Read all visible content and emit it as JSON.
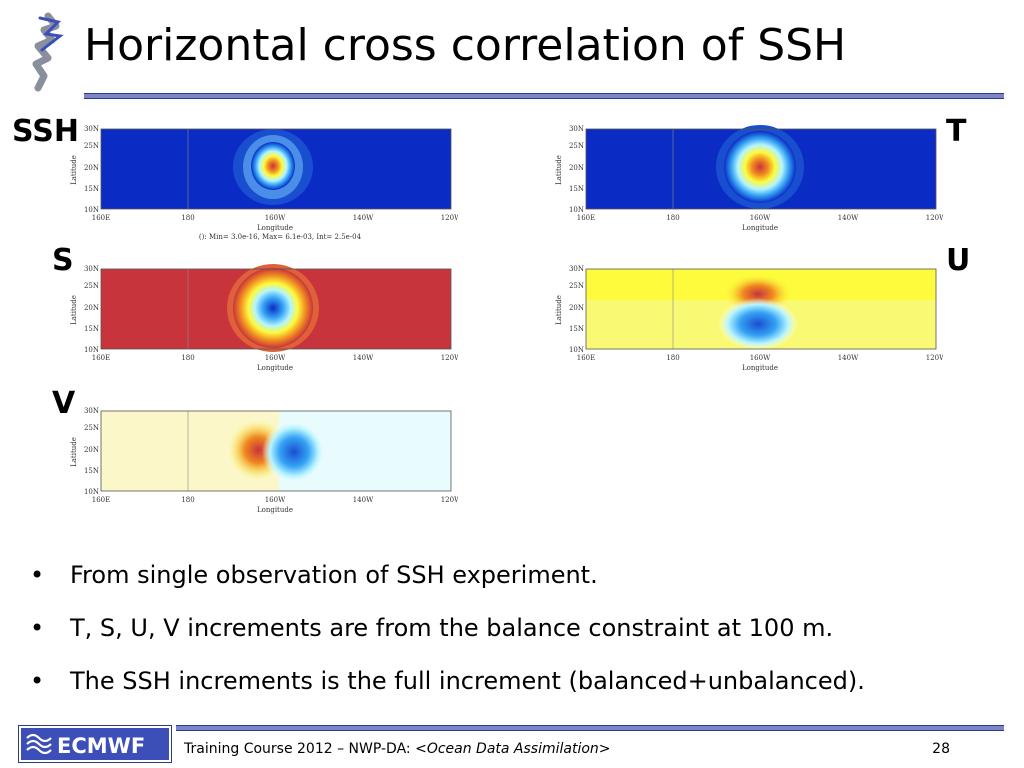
{
  "slide": {
    "title": "Horizontal cross correlation of SSH",
    "page_number": "28"
  },
  "panels": [
    {
      "id": "ssh",
      "label": "SSH",
      "caption": "(): Min= 3.0e-16, Max= 6.1e-03, Int= 2.5e-04"
    },
    {
      "id": "t",
      "label": "T",
      "caption": ""
    },
    {
      "id": "s",
      "label": "S",
      "caption": ""
    },
    {
      "id": "u",
      "label": "U",
      "caption": ""
    },
    {
      "id": "v",
      "label": "V",
      "caption": ""
    }
  ],
  "axes": {
    "xlabel": "Longitude",
    "ylabel": "Latitude",
    "xticks": [
      "160E",
      "180",
      "160W",
      "140W",
      "120W"
    ],
    "yticks": [
      "30N",
      "25N",
      "20N",
      "15N",
      "10N"
    ]
  },
  "colors": {
    "accent_bar": "#7a86c8",
    "accent_border": "#2e3b8c",
    "deep_blue": "#0a2cc4",
    "deep_red": "#c8343c",
    "yellow": "#fdfb3c",
    "pale_yellow": "#fbf7c9",
    "pale_cyan": "#e8fbfd"
  },
  "bullets": [
    "From single observation of SSH experiment.",
    "T, S, U, V increments are from the balance constraint at 100 m.",
    "The SSH increments is the full increment (balanced+unbalanced)."
  ],
  "footer": {
    "course": "Training Course 2012 – NWP-DA: ",
    "course_italic": "<Ocean Data Assimilation>",
    "logo_text": "ECMWF"
  }
}
